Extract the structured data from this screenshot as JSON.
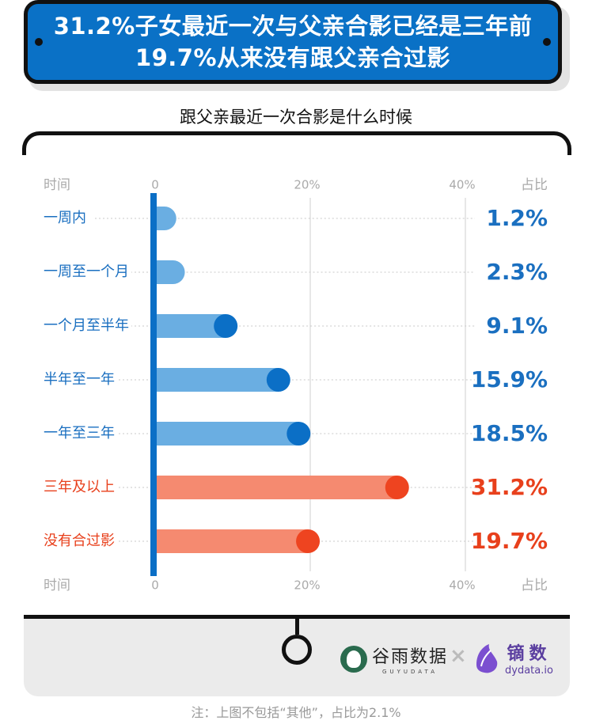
{
  "title": {
    "line1": "31.2%子女最近一次与父亲合影已经是三年前",
    "line2": "19.7%从来没有跟父亲合过影"
  },
  "subtitle": "跟父亲最近一次合影是什么时候",
  "axis": {
    "left_label": "时间",
    "right_label": "占比",
    "tick_labels": [
      "0",
      "20%",
      "40%"
    ]
  },
  "chart_data": {
    "type": "bar",
    "orientation": "horizontal",
    "title": "跟父亲最近一次合影是什么时候",
    "categories": [
      "一周内",
      "一周至一个月",
      "一个月至半年",
      "半年至一年",
      "一年至三年",
      "三年及以上",
      "没有合过影"
    ],
    "values": [
      1.2,
      2.3,
      9.1,
      15.9,
      18.5,
      31.2,
      19.7
    ],
    "value_labels": [
      "1.2%",
      "2.3%",
      "9.1%",
      "15.9%",
      "18.5%",
      "31.2%",
      "19.7%"
    ],
    "unit": "%",
    "xlim": [
      0,
      40
    ],
    "xticks": [
      0,
      20,
      40
    ],
    "highlight": [
      false,
      false,
      false,
      false,
      false,
      true,
      true
    ],
    "colors": {
      "label_normal": "#1a6fc0",
      "label_highlight": "#e8401c",
      "bar_normal": "#6aaee2",
      "dot_normal": "#0b6fc6",
      "bar_highlight": "#f58a70",
      "dot_highlight": "#ee4420",
      "axis": "#0b6fc6"
    }
  },
  "logos": {
    "guyu_main": "谷雨数据",
    "guyu_sub": "GUYUDATA",
    "times": "×",
    "dydata_main": "镝数",
    "dydata_sub": "dydata.io"
  },
  "note": "注：上图不包括“其他”，占比为2.1%"
}
